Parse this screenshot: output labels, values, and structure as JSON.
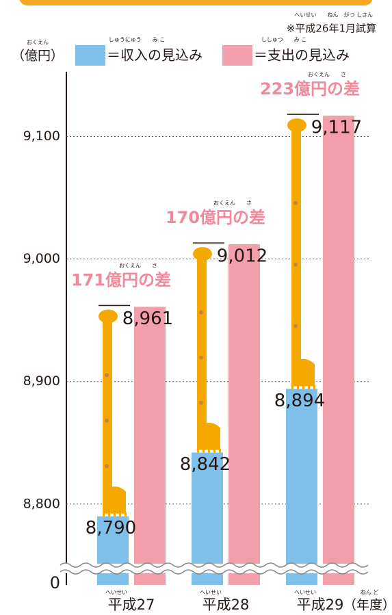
{
  "chart_data": {
    "type": "bar",
    "note": "※平成26年1月試算",
    "note_reading": "へいせい　　ねん　がつ しさん",
    "unit_label": "（億円）",
    "unit_reading": "おくえん",
    "categories": [
      "平成27",
      "平成28",
      "平成29"
    ],
    "category_reading": "へいせい",
    "x_unit_label": "（年度）",
    "x_unit_reading": "ねん ど",
    "series": [
      {
        "name": "＝収入の見込み",
        "name_reading": "しゅうにゅう　　み こ",
        "color": "#7fc0ea",
        "values": [
          8790,
          8842,
          8894
        ],
        "value_labels": [
          "8,790",
          "8,842",
          "8,894"
        ]
      },
      {
        "name": "＝支出の見込み",
        "name_reading": "ししゅつ　　み こ",
        "color": "#f29fab",
        "values": [
          8961,
          9012,
          9117
        ],
        "value_labels": [
          "8,961",
          "9,012",
          "9,117"
        ]
      }
    ],
    "annotations": [
      {
        "text": "171億円の差",
        "reading": "おくえん　　さ"
      },
      {
        "text": "170億円の差",
        "reading": "おくえん　　さ"
      },
      {
        "text": "223億円の差",
        "reading": "おくえん　　さ"
      }
    ],
    "ylim": [
      8734,
      9150
    ],
    "yticks": [
      {
        "value": 8800,
        "label": "8,800"
      },
      {
        "value": 8900,
        "label": "8,900"
      },
      {
        "value": 9000,
        "label": "9,000"
      },
      {
        "value": 9100,
        "label": "9,100"
      }
    ],
    "zero_label": "0",
    "grid": true
  }
}
